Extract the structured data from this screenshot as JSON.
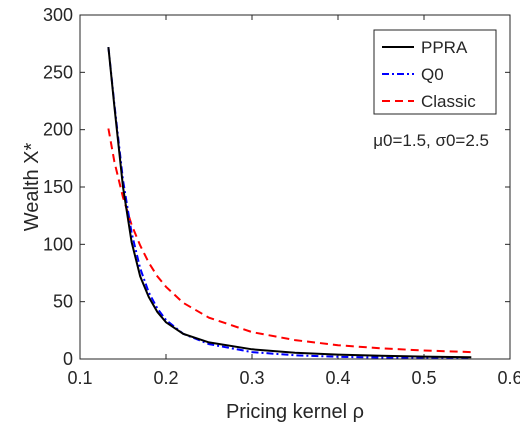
{
  "chart_data": {
    "type": "line",
    "xlabel": "Pricing kernel ρ",
    "ylabel": "Wealth X*",
    "xlim": [
      0.1,
      0.6
    ],
    "ylim": [
      0,
      300
    ],
    "xticks": [
      0.1,
      0.2,
      0.3,
      0.4,
      0.5,
      0.6
    ],
    "yticks": [
      0,
      50,
      100,
      150,
      200,
      250,
      300
    ],
    "grid": false,
    "legend_position": "top-right",
    "annotation": "μ0=1.5, σ0=2.5",
    "series": [
      {
        "name": "PPRA",
        "color": "#000000",
        "dash": "solid",
        "points": [
          [
            0.133,
            272
          ],
          [
            0.14,
            220
          ],
          [
            0.15,
            150
          ],
          [
            0.16,
            102
          ],
          [
            0.17,
            72
          ],
          [
            0.18,
            54
          ],
          [
            0.19,
            41
          ],
          [
            0.2,
            32
          ],
          [
            0.22,
            22
          ],
          [
            0.25,
            14.5
          ],
          [
            0.3,
            8.5
          ],
          [
            0.35,
            5.5
          ],
          [
            0.4,
            3.8
          ],
          [
            0.45,
            2.8
          ],
          [
            0.5,
            2.1
          ],
          [
            0.555,
            1.6
          ]
        ]
      },
      {
        "name": "Q0",
        "color": "#0000ff",
        "dash": "dash-dot",
        "points": [
          [
            0.133,
            272
          ],
          [
            0.14,
            222
          ],
          [
            0.15,
            156
          ],
          [
            0.16,
            110
          ],
          [
            0.17,
            79
          ],
          [
            0.18,
            58
          ],
          [
            0.19,
            44
          ],
          [
            0.2,
            34
          ],
          [
            0.22,
            22
          ],
          [
            0.25,
            13
          ],
          [
            0.3,
            6
          ],
          [
            0.35,
            3.2
          ],
          [
            0.4,
            1.9
          ],
          [
            0.45,
            1.2
          ],
          [
            0.5,
            0.8
          ],
          [
            0.555,
            0.5
          ]
        ]
      },
      {
        "name": "Classic",
        "color": "#ff0000",
        "dash": "dashed",
        "points": [
          [
            0.133,
            201
          ],
          [
            0.14,
            172
          ],
          [
            0.15,
            141
          ],
          [
            0.16,
            117
          ],
          [
            0.17,
            99
          ],
          [
            0.18,
            84
          ],
          [
            0.19,
            72
          ],
          [
            0.2,
            63
          ],
          [
            0.22,
            49
          ],
          [
            0.25,
            36
          ],
          [
            0.3,
            23.5
          ],
          [
            0.35,
            16.5
          ],
          [
            0.4,
            12
          ],
          [
            0.45,
            9.3
          ],
          [
            0.5,
            7.4
          ],
          [
            0.555,
            6
          ]
        ]
      }
    ]
  }
}
